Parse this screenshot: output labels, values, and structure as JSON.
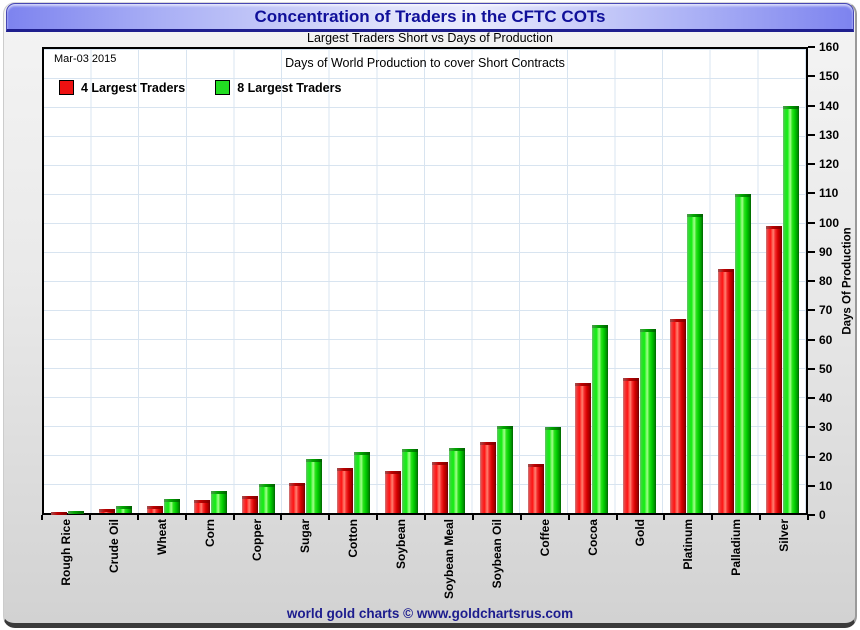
{
  "window": {
    "title": "Concentration of Traders in the CFTC COTs"
  },
  "subtitle": "Largest Traders Short vs Days of Production",
  "plot": {
    "date_label": "Mar-03 2015",
    "inner_title": "Days of World Production to cover Short Contracts"
  },
  "legend": {
    "items": [
      {
        "label": "4 Largest Traders",
        "color": "#ee1111"
      },
      {
        "label": "8 Largest Traders",
        "color": "#22dd22"
      }
    ]
  },
  "footer": {
    "credit": "world gold charts © www.goldchartsrus.com"
  },
  "colors": {
    "title_text": "#10109a",
    "footer_text": "#1c1c8e",
    "grid_line": "#d8e4f0",
    "bar_red": "#ee1111",
    "bar_green": "#00dd00",
    "titlebar_blue": "#7d83ef"
  },
  "chart_data": {
    "type": "bar",
    "title": "Days of World Production to cover Short Contracts",
    "subtitle": "Largest Traders Short vs Days of Production",
    "date": "Mar-03 2015",
    "categories": [
      "Rough Rice",
      "Crude Oil",
      "Wheat",
      "Corn",
      "Copper",
      "Sugar",
      "Cotton",
      "Soybean",
      "Soybean Meal",
      "Soybean Oil",
      "Coffee",
      "Cocoa",
      "Gold",
      "Platinum",
      "Palladium",
      "Silver"
    ],
    "series": [
      {
        "name": "4 Largest Traders",
        "color": "#ee1111",
        "values": [
          0.4,
          1.5,
          2.5,
          4.6,
          6,
          10.5,
          15.5,
          14.5,
          17.5,
          24.5,
          17,
          45,
          46.5,
          67,
          84,
          99
        ]
      },
      {
        "name": "8 Largest Traders",
        "color": "#00dd00",
        "values": [
          0.8,
          2.5,
          5,
          7.5,
          10,
          18.5,
          21,
          22,
          22.5,
          30,
          29.5,
          65,
          63.5,
          103,
          110,
          140.5
        ]
      }
    ],
    "xlabel": "",
    "ylabel": "Days Of Production",
    "ylim": [
      0,
      160
    ],
    "yticks": [
      0,
      10,
      20,
      30,
      40,
      50,
      60,
      70,
      80,
      90,
      100,
      110,
      120,
      130,
      140,
      150,
      160
    ],
    "grid": true,
    "legend_position": "top-left"
  }
}
